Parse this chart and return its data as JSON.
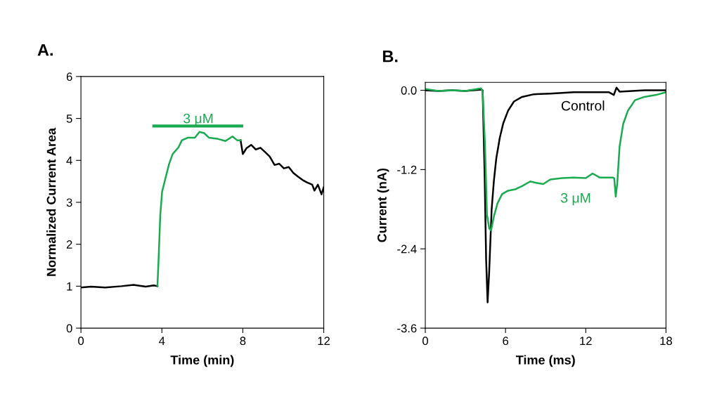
{
  "chart_data": [
    {
      "type": "line",
      "title": "A.",
      "xlabel": "Time (min)",
      "ylabel": "Normalized Current Area",
      "xlim": [
        0,
        12
      ],
      "ylim": [
        0,
        6
      ],
      "xticks": [
        0,
        4,
        8,
        12
      ],
      "yticks": [
        0,
        1,
        2,
        3,
        4,
        5,
        6
      ],
      "grid": false,
      "legend": false,
      "marker": "none",
      "line_style": "solid",
      "series": [
        {
          "color": "#000000",
          "x": [
            0,
            0.5,
            1.2,
            2,
            2.6,
            3.2,
            3.6,
            3.78,
            null,
            7.89,
            8.0,
            8.18,
            8.41,
            8.64,
            8.87,
            9.1,
            9.33,
            9.57,
            9.8,
            10.03,
            10.27,
            10.5,
            10.73,
            10.96,
            11.19,
            11.43,
            11.54,
            11.71,
            11.89,
            12
          ],
          "values": [
            0.97,
            0.99,
            0.97,
            1.0,
            1.03,
            0.99,
            1.02,
            1.0,
            null,
            4.48,
            4.15,
            4.29,
            4.37,
            4.26,
            4.3,
            4.2,
            4.09,
            3.89,
            3.92,
            3.81,
            3.84,
            3.7,
            3.61,
            3.53,
            3.47,
            3.42,
            3.28,
            3.42,
            3.19,
            3.36
          ]
        },
        {
          "color": "#1aab50",
          "x": [
            3.78,
            3.84,
            3.92,
            4.01,
            4.18,
            4.36,
            4.53,
            4.82,
            4.99,
            5.27,
            5.63,
            5.86,
            6.09,
            6.33,
            6.79,
            7.14,
            7.49,
            7.72,
            7.89
          ],
          "values": [
            1.0,
            1.67,
            2.69,
            3.25,
            3.58,
            3.92,
            4.15,
            4.31,
            4.48,
            4.54,
            4.54,
            4.68,
            4.65,
            4.54,
            4.51,
            4.46,
            4.57,
            4.48,
            4.48
          ]
        },
        {
          "color": "#1aab50",
          "x": [
            3.6,
            7.95
          ],
          "values": [
            4.82,
            4.82
          ]
        }
      ],
      "annotations": [
        {
          "text": "3 μM",
          "x": 5.8,
          "y": 4.82
        }
      ]
    },
    {
      "type": "line",
      "title": "B.",
      "xlabel": "Time (ms)",
      "ylabel": "Current (nA)",
      "xlim": [
        0,
        18
      ],
      "ylim": [
        -3.6,
        0.12
      ],
      "xticks": [
        0,
        6,
        12,
        18
      ],
      "yticks": [
        {
          "value": -3.6,
          "label": "-3.6"
        },
        {
          "value": -2.4,
          "label": "-2.4"
        },
        {
          "value": -1.2,
          "label": "-1.2"
        },
        {
          "value": 0,
          "label": "0.0"
        }
      ],
      "grid": false,
      "legend": false,
      "marker": "none",
      "line_style": "solid",
      "series": [
        {
          "color": "#000000",
          "x": [
            0,
            1,
            2,
            3,
            4.2,
            4.29,
            4.43,
            4.55,
            4.66,
            4.78,
            4.96,
            5.13,
            5.31,
            5.57,
            5.83,
            6.19,
            6.63,
            7.24,
            8.12,
            9.35,
            11.1,
            13.74,
            14.1,
            14.3,
            14.53,
            16.4,
            18
          ],
          "values": [
            0.0,
            -0.01,
            0.0,
            -0.01,
            0.01,
            0.0,
            -1.2,
            -2.56,
            -3.21,
            -2.74,
            -1.81,
            -1.37,
            -1.03,
            -0.72,
            -0.5,
            -0.31,
            -0.17,
            -0.1,
            -0.06,
            -0.05,
            -0.03,
            -0.03,
            -0.07,
            0.04,
            -0.02,
            0.0,
            0.0
          ]
        },
        {
          "color": "#1aab50",
          "x": [
            0,
            1,
            2,
            3,
            4.17,
            4.29,
            4.47,
            4.61,
            4.78,
            4.92,
            5.13,
            5.4,
            5.75,
            6.19,
            6.71,
            7.24,
            7.85,
            8.29,
            8.82,
            9.35,
            10.23,
            11.1,
            12.0,
            12.51,
            13.04,
            14.01,
            14.13,
            14.24,
            14.36,
            14.53,
            14.8,
            15.15,
            15.68,
            16.38,
            17.26,
            18
          ],
          "values": [
            0.02,
            -0.01,
            0.0,
            -0.01,
            0.03,
            -0.02,
            -0.85,
            -1.88,
            -2.09,
            -2.12,
            -1.91,
            -1.71,
            -1.57,
            -1.52,
            -1.5,
            -1.45,
            -1.38,
            -1.4,
            -1.42,
            -1.35,
            -1.33,
            -1.32,
            -1.33,
            -1.26,
            -1.32,
            -1.32,
            -1.33,
            -1.61,
            -1.4,
            -0.85,
            -0.51,
            -0.31,
            -0.15,
            -0.1,
            -0.07,
            -0.03
          ]
        }
      ],
      "annotations": [
        "Control",
        "3 μM"
      ]
    }
  ]
}
